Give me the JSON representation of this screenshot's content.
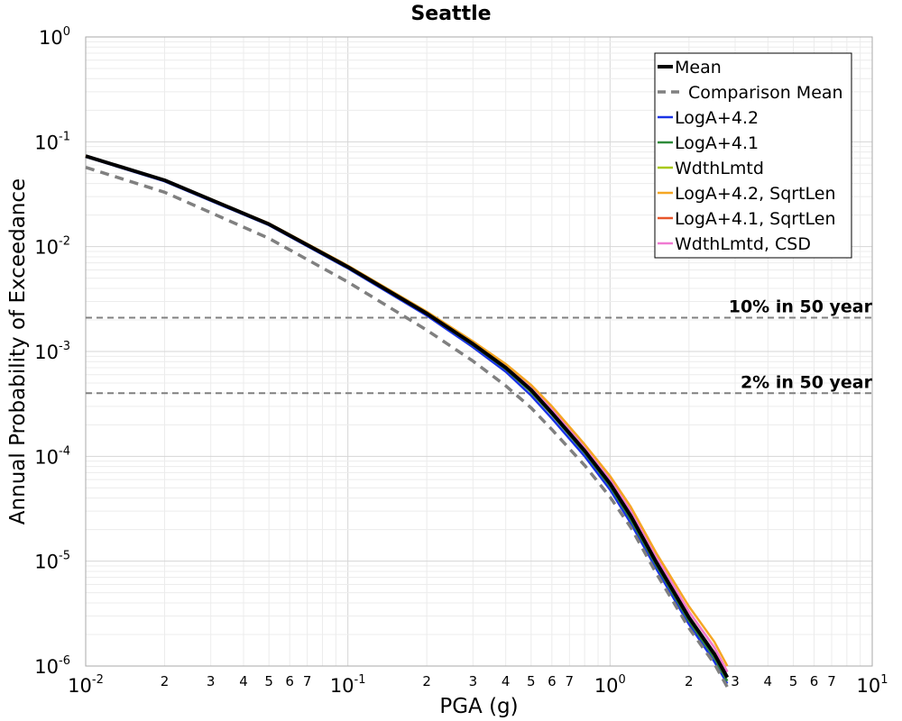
{
  "chart_data": {
    "type": "line",
    "title": "Seattle",
    "xlabel": "PGA (g)",
    "ylabel": "Annual Probability of Exceedance",
    "x_scale": "log",
    "y_scale": "log",
    "xlim": [
      0.01,
      10
    ],
    "ylim": [
      1e-06,
      1
    ],
    "grid": true,
    "legend_position": "top-right",
    "x_major_ticks": [
      {
        "value": 0.01,
        "base": "10",
        "exp": "-2"
      },
      {
        "value": 0.1,
        "base": "10",
        "exp": "-1"
      },
      {
        "value": 1,
        "base": "10",
        "exp": "0"
      },
      {
        "value": 10,
        "base": "10",
        "exp": "1"
      }
    ],
    "x_minor_ticks": [
      {
        "value": 0.02,
        "label": "2"
      },
      {
        "value": 0.03,
        "label": "3"
      },
      {
        "value": 0.04,
        "label": "4"
      },
      {
        "value": 0.05,
        "label": "5"
      },
      {
        "value": 0.06,
        "label": "6"
      },
      {
        "value": 0.07,
        "label": "7"
      },
      {
        "value": 0.2,
        "label": "2"
      },
      {
        "value": 0.3,
        "label": "3"
      },
      {
        "value": 0.4,
        "label": "4"
      },
      {
        "value": 0.5,
        "label": "5"
      },
      {
        "value": 0.6,
        "label": "6"
      },
      {
        "value": 0.7,
        "label": "7"
      },
      {
        "value": 2,
        "label": "2"
      },
      {
        "value": 3,
        "label": "3"
      },
      {
        "value": 4,
        "label": "4"
      },
      {
        "value": 5,
        "label": "5"
      },
      {
        "value": 6,
        "label": "6"
      },
      {
        "value": 7,
        "label": "7"
      }
    ],
    "y_major_ticks": [
      {
        "value": 1,
        "base": "10",
        "exp": "0"
      },
      {
        "value": 0.1,
        "base": "10",
        "exp": "-1"
      },
      {
        "value": 0.01,
        "base": "10",
        "exp": "-2"
      },
      {
        "value": 0.001,
        "base": "10",
        "exp": "-3"
      },
      {
        "value": 0.0001,
        "base": "10",
        "exp": "-4"
      },
      {
        "value": 1e-05,
        "base": "10",
        "exp": "-5"
      },
      {
        "value": 1e-06,
        "base": "10",
        "exp": "-6"
      }
    ],
    "reference_lines": [
      {
        "label": "10% in 50 year",
        "y": 0.0021,
        "color": "#808080"
      },
      {
        "label": "2% in 50 year",
        "y": 0.0004,
        "color": "#808080"
      }
    ],
    "series": [
      {
        "name": "LogA+4.2",
        "color": "#1a33e6",
        "width": 2.5,
        "dash": "",
        "x": [
          0.01,
          0.02,
          0.05,
          0.1,
          0.2,
          0.3,
          0.4,
          0.5,
          0.6,
          0.8,
          1.0,
          1.2,
          1.5,
          2.0,
          2.5,
          2.8
        ],
        "y": [
          0.072,
          0.042,
          0.016,
          0.0062,
          0.0022,
          0.0011,
          0.00064,
          0.00038,
          0.00023,
          0.0001,
          4.8e-05,
          2.3e-05,
          8.5e-06,
          2.5e-06,
          1.1e-06,
          6.8e-07
        ]
      },
      {
        "name": "LogA+4.1",
        "color": "#2e8b3a",
        "width": 2.5,
        "dash": "",
        "x": [
          0.01,
          0.02,
          0.05,
          0.1,
          0.2,
          0.3,
          0.4,
          0.5,
          0.6,
          0.8,
          1.0,
          1.2,
          1.5,
          2.0,
          2.5,
          2.8
        ],
        "y": [
          0.0725,
          0.0425,
          0.0162,
          0.0063,
          0.00228,
          0.00115,
          0.00068,
          0.00041,
          0.00025,
          0.000108,
          5.2e-05,
          2.5e-05,
          9.2e-06,
          2.7e-06,
          1.2e-06,
          7.2e-07
        ]
      },
      {
        "name": "WdthLmtd",
        "color": "#a8c814",
        "width": 2.5,
        "dash": "",
        "x": [
          0.01,
          0.02,
          0.05,
          0.1,
          0.2,
          0.3,
          0.4,
          0.5,
          0.6,
          0.8,
          1.0,
          1.2,
          1.5,
          2.0,
          2.5,
          2.8
        ],
        "y": [
          0.073,
          0.043,
          0.0164,
          0.0064,
          0.00232,
          0.00118,
          0.0007,
          0.00043,
          0.00026,
          0.000113,
          5.5e-05,
          2.7e-05,
          9.8e-06,
          2.9e-06,
          1.3e-06,
          7.8e-07
        ]
      },
      {
        "name": "LogA+4.1, SqrtLen",
        "color": "#e8562a",
        "width": 2.5,
        "dash": "",
        "x": [
          0.01,
          0.02,
          0.05,
          0.1,
          0.2,
          0.3,
          0.4,
          0.5,
          0.6,
          0.8,
          1.0,
          1.2,
          1.5,
          2.0,
          2.5,
          2.8
        ],
        "y": [
          0.073,
          0.043,
          0.0165,
          0.0065,
          0.00236,
          0.0012,
          0.00073,
          0.00045,
          0.00028,
          0.00012,
          6e-05,
          3e-05,
          1.1e-05,
          3.3e-06,
          1.5e-06,
          8.8e-07
        ]
      },
      {
        "name": "WdthLmtd, CSD",
        "color": "#f07ad2",
        "width": 2.5,
        "dash": "",
        "x": [
          0.01,
          0.02,
          0.05,
          0.1,
          0.2,
          0.3,
          0.4,
          0.5,
          0.6,
          0.8,
          1.0,
          1.2,
          1.5,
          2.0,
          2.5,
          2.8
        ],
        "y": [
          0.073,
          0.043,
          0.0165,
          0.0065,
          0.00236,
          0.0012,
          0.00073,
          0.00045,
          0.00028,
          0.00012,
          6e-05,
          3e-05,
          1.1e-05,
          3.3e-06,
          1.5e-06,
          8.8e-07
        ]
      },
      {
        "name": "LogA+4.2, SqrtLen",
        "color": "#f5a623",
        "width": 2.5,
        "dash": "",
        "x": [
          0.01,
          0.02,
          0.05,
          0.1,
          0.2,
          0.3,
          0.4,
          0.5,
          0.6,
          0.8,
          1.0,
          1.2,
          1.5,
          2.0,
          2.5,
          2.8
        ],
        "y": [
          0.0735,
          0.0435,
          0.0167,
          0.0066,
          0.0024,
          0.00125,
          0.00076,
          0.00048,
          0.0003,
          0.00013,
          6.5e-05,
          3.3e-05,
          1.2e-05,
          3.7e-06,
          1.7e-06,
          1e-06
        ]
      },
      {
        "name": "Mean",
        "color": "#000000",
        "width": 4,
        "dash": "",
        "x": [
          0.01,
          0.02,
          0.05,
          0.1,
          0.2,
          0.3,
          0.4,
          0.5,
          0.6,
          0.8,
          1.0,
          1.2,
          1.5,
          2.0,
          2.5,
          2.8
        ],
        "y": [
          0.073,
          0.043,
          0.0164,
          0.0064,
          0.0023,
          0.00118,
          0.0007,
          0.00043,
          0.00026,
          0.000113,
          5.5e-05,
          2.7e-05,
          9.8e-06,
          2.9e-06,
          1.3e-06,
          7.8e-07
        ]
      },
      {
        "name": "Comparison Mean",
        "color": "#808080",
        "width": 3.5,
        "dash": "10,7",
        "x": [
          0.01,
          0.02,
          0.05,
          0.1,
          0.2,
          0.3,
          0.4,
          0.5,
          0.6,
          0.8,
          1.0,
          1.2,
          1.5,
          2.0,
          2.5,
          2.8
        ],
        "y": [
          0.057,
          0.033,
          0.012,
          0.0046,
          0.0016,
          0.00081,
          0.00047,
          0.00029,
          0.00018,
          8.2e-05,
          4.1e-05,
          2.1e-05,
          7.7e-06,
          2.3e-06,
          1.05e-06,
          6.3e-07
        ]
      }
    ],
    "legend": [
      {
        "label": "Mean",
        "color": "#000000",
        "width": 4,
        "dash": ""
      },
      {
        "label": "Comparison Mean",
        "color": "#808080",
        "width": 3.5,
        "dash": "10,7"
      },
      {
        "label": "LogA+4.2",
        "color": "#1a33e6",
        "width": 2.5,
        "dash": ""
      },
      {
        "label": "LogA+4.1",
        "color": "#2e8b3a",
        "width": 2.5,
        "dash": ""
      },
      {
        "label": "WdthLmtd",
        "color": "#a8c814",
        "width": 2.5,
        "dash": ""
      },
      {
        "label": "LogA+4.2, SqrtLen",
        "color": "#f5a623",
        "width": 2.5,
        "dash": ""
      },
      {
        "label": "LogA+4.1, SqrtLen",
        "color": "#e8562a",
        "width": 2.5,
        "dash": ""
      },
      {
        "label": "WdthLmtd, CSD",
        "color": "#f07ad2",
        "width": 2.5,
        "dash": ""
      }
    ]
  }
}
